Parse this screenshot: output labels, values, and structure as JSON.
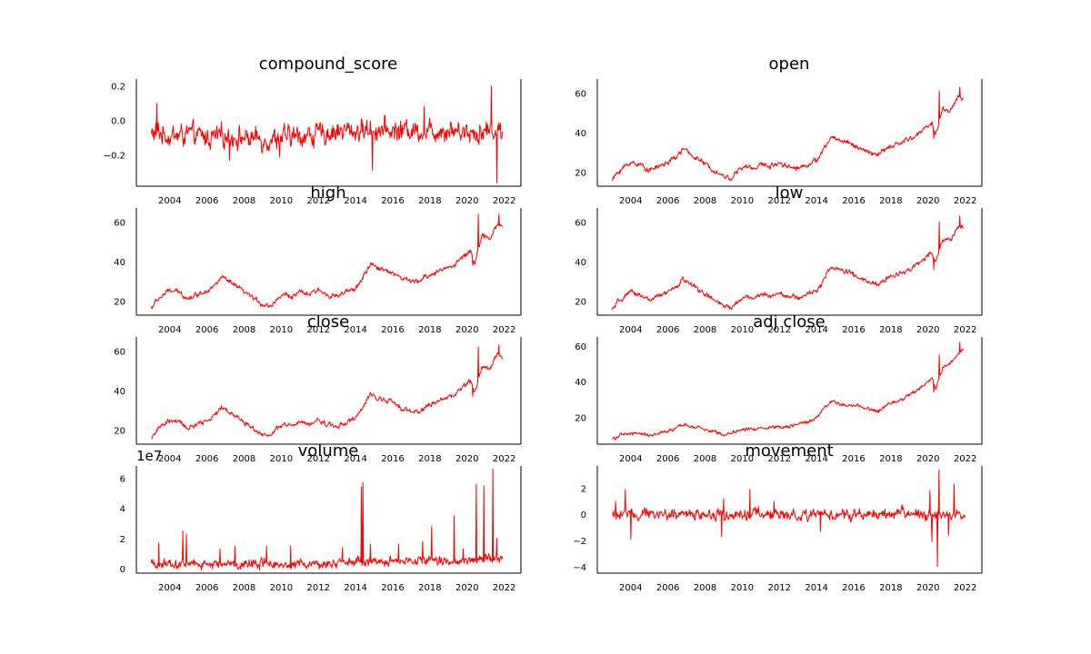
{
  "colors": {
    "series": "#ff0000",
    "axes": "#000000",
    "background": "#ffffff"
  },
  "chart_data": [
    {
      "type": "line",
      "title": "compound_score",
      "xlim": [
        2002.2,
        2022.9
      ],
      "ylim": [
        -0.38,
        0.24
      ],
      "yticks": [
        -0.2,
        0.0,
        0.2
      ],
      "ytick_labels": [
        "−0.2",
        "0.0",
        "0.2"
      ],
      "xticks": [
        2004,
        2006,
        2008,
        2010,
        2012,
        2014,
        2016,
        2018,
        2020,
        2022
      ],
      "xtick_labels": [
        "2004",
        "2006",
        "2008",
        "2010",
        "2012",
        "2014",
        "2016",
        "2018",
        "2020",
        "2022"
      ],
      "offset_label": "",
      "x": [
        2003.0,
        2003.5,
        2004.0,
        2005.0,
        2006.0,
        2007.0,
        2008.0,
        2009.0,
        2010.0,
        2011.0,
        2012.0,
        2013.0,
        2014.0,
        2015.0,
        2016.0,
        2017.0,
        2018.0,
        2019.0,
        2020.0,
        2020.5,
        2021.0,
        2021.5,
        2021.9
      ],
      "y": [
        -0.08,
        -0.07,
        -0.09,
        -0.08,
        -0.1,
        -0.09,
        -0.1,
        -0.11,
        -0.1,
        -0.09,
        -0.08,
        -0.06,
        -0.06,
        -0.05,
        -0.06,
        -0.05,
        -0.06,
        -0.05,
        -0.06,
        -0.07,
        -0.06,
        -0.05,
        -0.07
      ],
      "noise": 0.05,
      "spikes_up": [
        [
          2003.3,
          0.1
        ],
        [
          2021.3,
          0.2
        ],
        [
          2017.7,
          0.08
        ]
      ],
      "spikes_down": [
        [
          2014.9,
          -0.29
        ],
        [
          2021.6,
          -0.36
        ],
        [
          2007.2,
          -0.23
        ],
        [
          2009.9,
          -0.21
        ]
      ]
    },
    {
      "type": "line",
      "title": "open",
      "xlim": [
        2002.2,
        2022.9
      ],
      "ylim": [
        13,
        67
      ],
      "yticks": [
        20,
        40,
        60
      ],
      "ytick_labels": [
        "20",
        "40",
        "60"
      ],
      "xticks": [
        2004,
        2006,
        2008,
        2010,
        2012,
        2014,
        2016,
        2018,
        2020,
        2022
      ],
      "xtick_labels": [
        "2004",
        "2006",
        "2008",
        "2010",
        "2012",
        "2014",
        "2016",
        "2018",
        "2020",
        "2022"
      ],
      "offset_label": "",
      "x": [
        2003.0,
        2003.3,
        2003.7,
        2004.0,
        2004.5,
        2005.0,
        2005.5,
        2006.0,
        2006.5,
        2006.8,
        2007.2,
        2007.6,
        2008.0,
        2008.5,
        2009.0,
        2009.4,
        2009.8,
        2010.2,
        2010.6,
        2011.0,
        2011.5,
        2012.0,
        2012.5,
        2013.0,
        2013.5,
        2014.0,
        2014.3,
        2014.8,
        2015.3,
        2015.8,
        2016.3,
        2016.8,
        2017.3,
        2017.8,
        2018.3,
        2018.8,
        2019.3,
        2019.8,
        2020.2,
        2020.4,
        2020.8,
        2021.2,
        2021.6,
        2021.9
      ],
      "y": [
        16,
        20,
        23,
        25,
        24,
        21,
        23,
        25,
        28,
        32,
        29,
        27,
        24,
        21,
        18,
        17,
        21,
        23,
        22,
        24,
        23,
        25,
        23,
        22,
        24,
        26,
        30,
        38,
        36,
        35,
        32,
        30,
        29,
        32,
        34,
        36,
        38,
        42,
        45,
        39,
        52,
        51,
        58,
        57
      ],
      "noise": 1.0,
      "spikes_up": [
        [
          2020.6,
          61
        ],
        [
          2021.7,
          63
        ]
      ],
      "spikes_down": [
        [
          2020.3,
          37
        ]
      ]
    },
    {
      "type": "line",
      "title": "high",
      "xlim": [
        2002.2,
        2022.9
      ],
      "ylim": [
        13,
        67
      ],
      "yticks": [
        20,
        40,
        60
      ],
      "ytick_labels": [
        "20",
        "40",
        "60"
      ],
      "xticks": [
        2004,
        2006,
        2008,
        2010,
        2012,
        2014,
        2016,
        2018,
        2020,
        2022
      ],
      "xtick_labels": [
        "2004",
        "2006",
        "2008",
        "2010",
        "2012",
        "2014",
        "2016",
        "2018",
        "2020",
        "2022"
      ],
      "offset_label": "",
      "x": [
        2003.0,
        2003.3,
        2003.7,
        2004.0,
        2004.5,
        2005.0,
        2005.5,
        2006.0,
        2006.5,
        2006.8,
        2007.2,
        2007.6,
        2008.0,
        2008.5,
        2009.0,
        2009.4,
        2009.8,
        2010.2,
        2010.6,
        2011.0,
        2011.5,
        2012.0,
        2012.5,
        2013.0,
        2013.5,
        2014.0,
        2014.3,
        2014.8,
        2015.3,
        2015.8,
        2016.3,
        2016.8,
        2017.3,
        2017.8,
        2018.3,
        2018.8,
        2019.3,
        2019.8,
        2020.2,
        2020.4,
        2020.8,
        2021.2,
        2021.6,
        2021.9
      ],
      "y": [
        16.5,
        20.5,
        23.5,
        25.5,
        24.5,
        21.5,
        23.5,
        25.5,
        28.5,
        32.5,
        29.5,
        27.5,
        24.5,
        21.5,
        18.5,
        17.5,
        21.5,
        23.5,
        22.5,
        24.5,
        23.5,
        25.5,
        23.5,
        22.5,
        24.5,
        26.5,
        30.5,
        38.5,
        36.5,
        35.5,
        32.5,
        30.5,
        29.5,
        32.5,
        34.5,
        36.5,
        38.5,
        42.5,
        45.5,
        39.5,
        52.5,
        51.5,
        58.5,
        57.5
      ],
      "noise": 1.0,
      "spikes_up": [
        [
          2020.6,
          64
        ],
        [
          2021.7,
          64
        ]
      ],
      "spikes_down": [
        [
          2020.3,
          38
        ]
      ]
    },
    {
      "type": "line",
      "title": "low",
      "xlim": [
        2002.2,
        2022.9
      ],
      "ylim": [
        13,
        67
      ],
      "yticks": [
        20,
        40,
        60
      ],
      "ytick_labels": [
        "20",
        "40",
        "60"
      ],
      "xticks": [
        2004,
        2006,
        2008,
        2010,
        2012,
        2014,
        2016,
        2018,
        2020,
        2022
      ],
      "xtick_labels": [
        "2004",
        "2006",
        "2008",
        "2010",
        "2012",
        "2014",
        "2016",
        "2018",
        "2020",
        "2022"
      ],
      "offset_label": "",
      "x": [
        2003.0,
        2003.3,
        2003.7,
        2004.0,
        2004.5,
        2005.0,
        2005.5,
        2006.0,
        2006.5,
        2006.8,
        2007.2,
        2007.6,
        2008.0,
        2008.5,
        2009.0,
        2009.4,
        2009.8,
        2010.2,
        2010.6,
        2011.0,
        2011.5,
        2012.0,
        2012.5,
        2013.0,
        2013.5,
        2014.0,
        2014.3,
        2014.8,
        2015.3,
        2015.8,
        2016.3,
        2016.8,
        2017.3,
        2017.8,
        2018.3,
        2018.8,
        2019.3,
        2019.8,
        2020.2,
        2020.4,
        2020.8,
        2021.2,
        2021.6,
        2021.9
      ],
      "y": [
        15.5,
        19.5,
        22.5,
        24.5,
        23.5,
        20.5,
        22.5,
        24.5,
        27.5,
        31.5,
        28.5,
        26.5,
        23.5,
        20.5,
        17.5,
        16.5,
        20.5,
        22.5,
        21.5,
        23.5,
        22.5,
        24.5,
        22.5,
        21.5,
        23.5,
        25.5,
        29.5,
        37.5,
        35.5,
        34.5,
        31.5,
        29.5,
        28.5,
        31.5,
        33.5,
        35.5,
        37.5,
        41.5,
        44.5,
        38.5,
        51.5,
        50.5,
        57.5,
        56.5
      ],
      "noise": 1.0,
      "spikes_up": [
        [
          2020.6,
          60
        ],
        [
          2021.7,
          63
        ]
      ],
      "spikes_down": [
        [
          2020.3,
          36
        ]
      ]
    },
    {
      "type": "line",
      "title": "close",
      "xlim": [
        2002.2,
        2022.9
      ],
      "ylim": [
        13,
        67
      ],
      "yticks": [
        20,
        40,
        60
      ],
      "ytick_labels": [
        "20",
        "40",
        "60"
      ],
      "xticks": [
        2004,
        2006,
        2008,
        2010,
        2012,
        2014,
        2016,
        2018,
        2020,
        2022
      ],
      "xtick_labels": [
        "2004",
        "2006",
        "2008",
        "2010",
        "2012",
        "2014",
        "2016",
        "2018",
        "2020",
        "2022"
      ],
      "offset_label": "",
      "x": [
        2003.0,
        2003.3,
        2003.7,
        2004.0,
        2004.5,
        2005.0,
        2005.5,
        2006.0,
        2006.5,
        2006.8,
        2007.2,
        2007.6,
        2008.0,
        2008.5,
        2009.0,
        2009.4,
        2009.8,
        2010.2,
        2010.6,
        2011.0,
        2011.5,
        2012.0,
        2012.5,
        2013.0,
        2013.5,
        2014.0,
        2014.3,
        2014.8,
        2015.3,
        2015.8,
        2016.3,
        2016.8,
        2017.3,
        2017.8,
        2018.3,
        2018.8,
        2019.3,
        2019.8,
        2020.2,
        2020.4,
        2020.8,
        2021.2,
        2021.6,
        2021.9
      ],
      "y": [
        16,
        20,
        23,
        25,
        24,
        21,
        23,
        25,
        28,
        32,
        29,
        27,
        24,
        21,
        18,
        17,
        21,
        23,
        22,
        24,
        23,
        25,
        23,
        22,
        24,
        26,
        30,
        38,
        36,
        35,
        32,
        30,
        29,
        32,
        34,
        36,
        38,
        42,
        45,
        39,
        52,
        51,
        58,
        57
      ],
      "noise": 1.0,
      "spikes_up": [
        [
          2020.6,
          62
        ],
        [
          2021.7,
          63
        ]
      ],
      "spikes_down": [
        [
          2020.3,
          37
        ]
      ]
    },
    {
      "type": "line",
      "title": "adj close",
      "xlim": [
        2002.2,
        2022.9
      ],
      "ylim": [
        5,
        65
      ],
      "yticks": [
        20,
        40,
        60
      ],
      "ytick_labels": [
        "20",
        "40",
        "60"
      ],
      "xticks": [
        2004,
        2006,
        2008,
        2010,
        2012,
        2014,
        2016,
        2018,
        2020,
        2022
      ],
      "xtick_labels": [
        "2004",
        "2006",
        "2008",
        "2010",
        "2012",
        "2014",
        "2016",
        "2018",
        "2020",
        "2022"
      ],
      "offset_label": "",
      "x": [
        2003.0,
        2003.5,
        2004.0,
        2004.5,
        2005.0,
        2005.5,
        2006.0,
        2006.5,
        2006.8,
        2007.3,
        2008.0,
        2008.6,
        2009.0,
        2009.5,
        2010.0,
        2011.0,
        2012.0,
        2012.5,
        2013.0,
        2013.5,
        2014.0,
        2014.3,
        2014.8,
        2015.3,
        2016.0,
        2016.8,
        2017.3,
        2017.8,
        2018.5,
        2019.2,
        2019.8,
        2020.2,
        2020.4,
        2020.8,
        2021.2,
        2021.6,
        2021.9
      ],
      "y": [
        8,
        10,
        11,
        11,
        10,
        11,
        12,
        14,
        16,
        15,
        13,
        12,
        10,
        12,
        13,
        14,
        15,
        15,
        16,
        17,
        20,
        24,
        29,
        27,
        27,
        25,
        23,
        27,
        30,
        34,
        38,
        42,
        36,
        48,
        50,
        56,
        58
      ],
      "noise": 0.8,
      "spikes_up": [
        [
          2020.6,
          55
        ],
        [
          2021.7,
          62
        ]
      ],
      "spikes_down": [
        [
          2020.3,
          34
        ]
      ]
    },
    {
      "type": "line",
      "title": "volume",
      "xlim": [
        2002.2,
        2022.9
      ],
      "ylim": [
        -0.3,
        6.8
      ],
      "yticks": [
        0,
        2,
        4,
        6
      ],
      "ytick_labels": [
        "0",
        "2",
        "4",
        "6"
      ],
      "xticks": [
        2004,
        2006,
        2008,
        2010,
        2012,
        2014,
        2016,
        2018,
        2020,
        2022
      ],
      "xtick_labels": [
        "2004",
        "2006",
        "2008",
        "2010",
        "2012",
        "2014",
        "2016",
        "2018",
        "2020",
        "2022"
      ],
      "offset_label": "1e7",
      "x": [
        2003.0,
        2005.0,
        2007.0,
        2009.0,
        2011.0,
        2013.0,
        2014.0,
        2015.0,
        2016.0,
        2017.0,
        2018.0,
        2019.0,
        2020.0,
        2021.0,
        2021.9
      ],
      "y": [
        0.3,
        0.3,
        0.3,
        0.4,
        0.3,
        0.3,
        0.4,
        0.4,
        0.4,
        0.5,
        0.5,
        0.5,
        0.6,
        0.8,
        0.5
      ],
      "noise": 0.25,
      "spikes_up": [
        [
          2003.4,
          1.7
        ],
        [
          2004.7,
          2.5
        ],
        [
          2004.9,
          2.3
        ],
        [
          2006.7,
          1.3
        ],
        [
          2007.5,
          1.5
        ],
        [
          2009.2,
          1.5
        ],
        [
          2010.5,
          1.5
        ],
        [
          2013.3,
          1.4
        ],
        [
          2014.3,
          5.4
        ],
        [
          2014.4,
          5.7
        ],
        [
          2014.8,
          1.6
        ],
        [
          2016.3,
          1.6
        ],
        [
          2017.6,
          1.8
        ],
        [
          2018.1,
          2.8
        ],
        [
          2019.3,
          3.5
        ],
        [
          2019.8,
          1.3
        ],
        [
          2020.5,
          5.6
        ],
        [
          2020.9,
          5.5
        ],
        [
          2021.4,
          6.6
        ],
        [
          2021.6,
          2.0
        ]
      ],
      "spikes_down": []
    },
    {
      "type": "line",
      "title": "movement",
      "xlim": [
        2002.2,
        2022.9
      ],
      "ylim": [
        -4.5,
        3.7
      ],
      "yticks": [
        -4,
        -2,
        0,
        2
      ],
      "ytick_labels": [
        "−4",
        "−2",
        "0",
        "2"
      ],
      "xticks": [
        2004,
        2006,
        2008,
        2010,
        2012,
        2014,
        2016,
        2018,
        2020,
        2022
      ],
      "xtick_labels": [
        "2004",
        "2006",
        "2008",
        "2010",
        "2012",
        "2014",
        "2016",
        "2018",
        "2020",
        "2022"
      ],
      "offset_label": "",
      "x": [
        2003.0,
        2022.0
      ],
      "y": [
        0.0,
        0.0
      ],
      "noise": 0.35,
      "spikes_up": [
        [
          2003.2,
          1.0
        ],
        [
          2003.7,
          1.9
        ],
        [
          2009.0,
          1.2
        ],
        [
          2010.4,
          1.9
        ],
        [
          2011.7,
          1.0
        ],
        [
          2020.1,
          1.8
        ],
        [
          2020.6,
          3.4
        ],
        [
          2021.4,
          2.3
        ]
      ],
      "spikes_down": [
        [
          2004.0,
          -1.9
        ],
        [
          2008.9,
          -1.7
        ],
        [
          2014.2,
          -1.3
        ],
        [
          2020.2,
          -2.1
        ],
        [
          2020.5,
          -4.0
        ],
        [
          2021.1,
          -1.6
        ]
      ]
    }
  ]
}
